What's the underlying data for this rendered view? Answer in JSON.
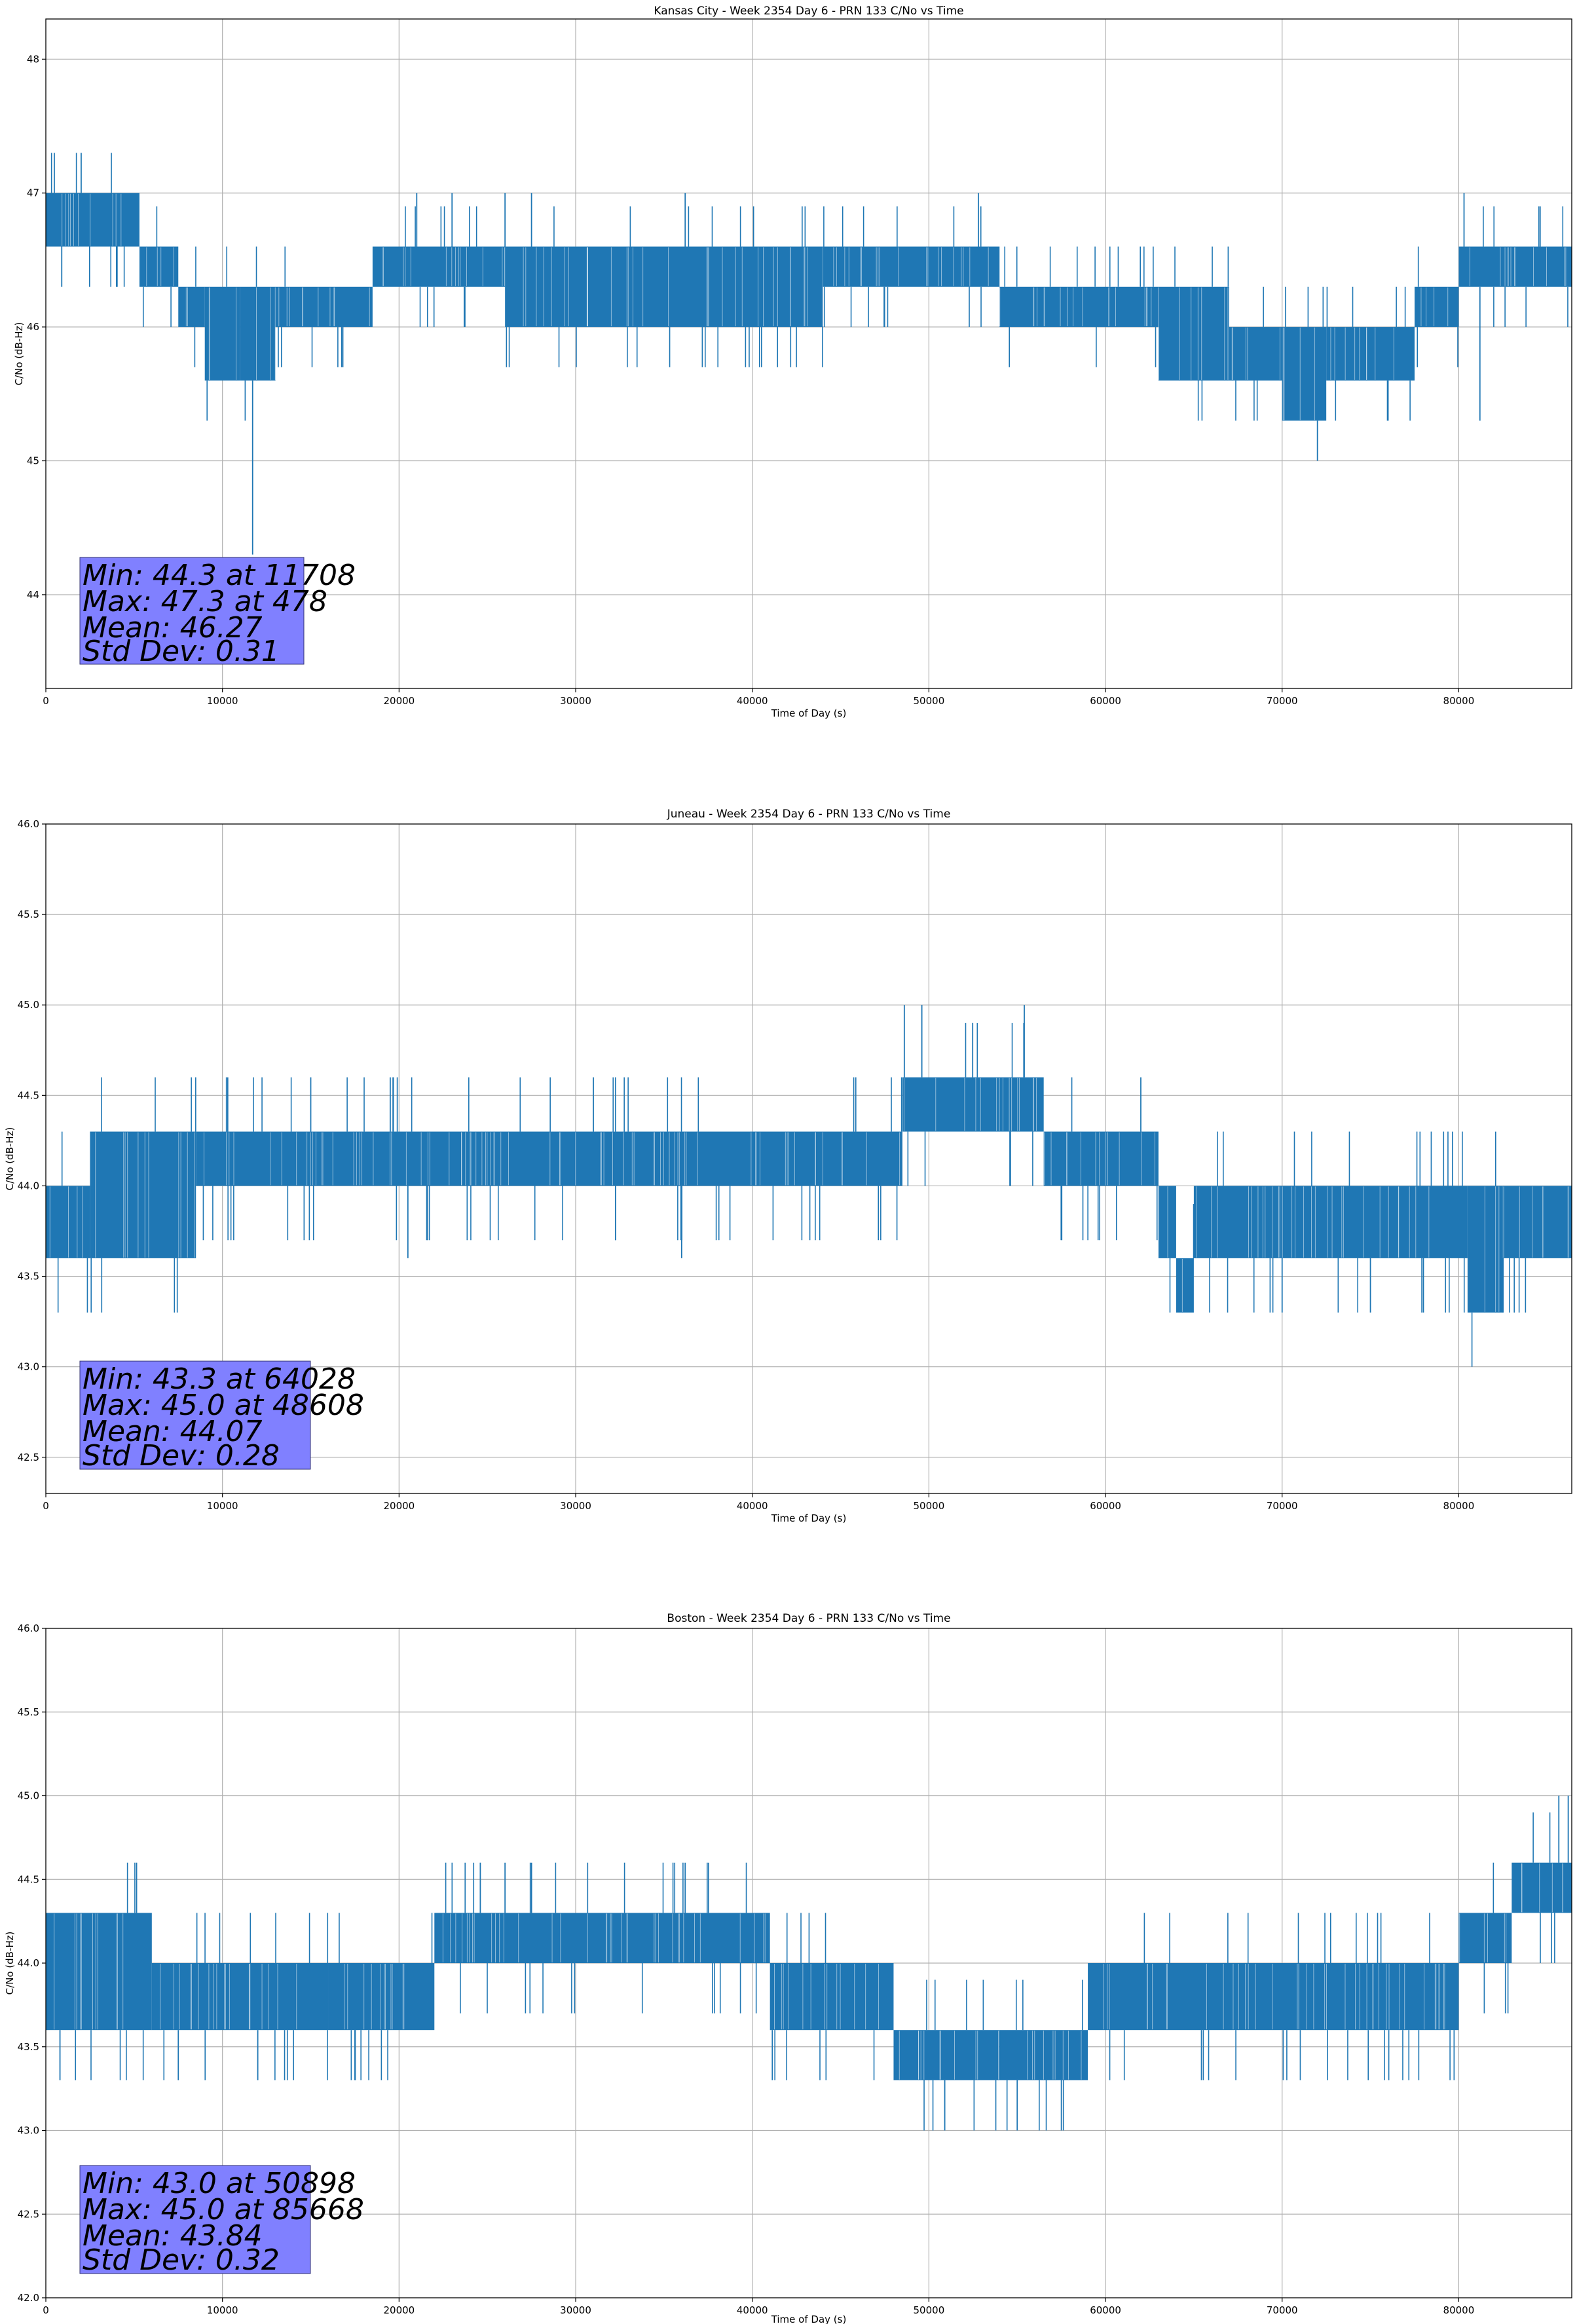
{
  "figure": {
    "line_color": "#1f77b4",
    "grid_color": "#b0b0b0",
    "stats_box_color": "#8080ff"
  },
  "chart_data": [
    {
      "type": "line",
      "title": "Kansas City - Week 2354 Day 6 - PRN 133 C/No vs Time",
      "xlabel": "Time of Day (s)",
      "ylabel": "C/No (dB-Hz)",
      "xlim": [
        0,
        86400
      ],
      "ylim": [
        43.3,
        48.3
      ],
      "xticks": [
        0,
        10000,
        20000,
        30000,
        40000,
        50000,
        60000,
        70000,
        80000
      ],
      "xtick_labels": [
        "0",
        "10000",
        "20000",
        "30000",
        "40000",
        "50000",
        "60000",
        "70000",
        "80000"
      ],
      "yticks": [
        44,
        45,
        46,
        47,
        48
      ],
      "ytick_labels": [
        "44",
        "45",
        "46",
        "47",
        "48"
      ],
      "grid": true,
      "series": [
        {
          "name": "C/No",
          "bands": [
            {
              "x": [
                0,
                5300
              ],
              "low": 46.6,
              "high": 47.0
            },
            {
              "x": [
                5300,
                7500
              ],
              "low": 46.3,
              "high": 46.6
            },
            {
              "x": [
                7500,
                9000
              ],
              "low": 46.0,
              "high": 46.3
            },
            {
              "x": [
                9000,
                11000
              ],
              "low": 45.6,
              "high": 46.3
            },
            {
              "x": [
                11000,
                13000
              ],
              "low": 45.6,
              "high": 46.3
            },
            {
              "x": [
                13000,
                18500
              ],
              "low": 46.0,
              "high": 46.3
            },
            {
              "x": [
                18500,
                26000
              ],
              "low": 46.3,
              "high": 46.6
            },
            {
              "x": [
                26000,
                44000
              ],
              "low": 46.0,
              "high": 46.6
            },
            {
              "x": [
                44000,
                54000
              ],
              "low": 46.3,
              "high": 46.6
            },
            {
              "x": [
                54000,
                63000
              ],
              "low": 46.0,
              "high": 46.3
            },
            {
              "x": [
                63000,
                67000
              ],
              "low": 45.6,
              "high": 46.3
            },
            {
              "x": [
                67000,
                70000
              ],
              "low": 45.6,
              "high": 46.0
            },
            {
              "x": [
                70000,
                72500
              ],
              "low": 45.3,
              "high": 46.0
            },
            {
              "x": [
                72500,
                77500
              ],
              "low": 45.6,
              "high": 46.0
            },
            {
              "x": [
                77500,
                80000
              ],
              "low": 46.0,
              "high": 46.3
            },
            {
              "x": [
                80000,
                86400
              ],
              "low": 46.3,
              "high": 46.6
            }
          ],
          "spikes": [
            {
              "x": 11708,
              "y": 44.3
            },
            {
              "x": 478,
              "y": 47.3
            },
            {
              "x": 2000,
              "y": 47.3
            },
            {
              "x": 21000,
              "y": 47.0
            },
            {
              "x": 23000,
              "y": 47.0
            },
            {
              "x": 26000,
              "y": 47.0
            },
            {
              "x": 27500,
              "y": 47.0
            },
            {
              "x": 36200,
              "y": 47.0
            },
            {
              "x": 52800,
              "y": 47.0
            },
            {
              "x": 80300,
              "y": 47.0
            },
            {
              "x": 72000,
              "y": 45.0
            },
            {
              "x": 76000,
              "y": 45.3
            },
            {
              "x": 81200,
              "y": 45.3
            },
            {
              "x": 4000,
              "y": 46.3
            },
            {
              "x": 900,
              "y": 46.3
            }
          ]
        }
      ],
      "stats": {
        "min": "Min: 44.3 at 11708",
        "max": "Max: 47.3 at 478",
        "mean": "Mean: 46.27",
        "std": "Std Dev: 0.31"
      }
    },
    {
      "type": "line",
      "title": "Juneau - Week 2354 Day 6 - PRN 133 C/No vs Time",
      "xlabel": "Time of Day (s)",
      "ylabel": "C/No (dB-Hz)",
      "xlim": [
        0,
        86400
      ],
      "ylim": [
        42.3,
        46.0
      ],
      "xticks": [
        0,
        10000,
        20000,
        30000,
        40000,
        50000,
        60000,
        70000,
        80000
      ],
      "xtick_labels": [
        "0",
        "10000",
        "20000",
        "30000",
        "40000",
        "50000",
        "60000",
        "70000",
        "80000"
      ],
      "yticks": [
        42.5,
        43.0,
        43.5,
        44.0,
        44.5,
        45.0,
        45.5,
        46.0
      ],
      "ytick_labels": [
        "42.5",
        "43.0",
        "43.5",
        "44.0",
        "44.5",
        "45.0",
        "45.5",
        "46.0"
      ],
      "grid": true,
      "series": [
        {
          "name": "C/No",
          "bands": [
            {
              "x": [
                0,
                2500
              ],
              "low": 43.6,
              "high": 44.0
            },
            {
              "x": [
                2500,
                8500
              ],
              "low": 43.6,
              "high": 44.3
            },
            {
              "x": [
                8500,
                48500
              ],
              "low": 44.0,
              "high": 44.3
            },
            {
              "x": [
                48500,
                56500
              ],
              "low": 44.3,
              "high": 44.6
            },
            {
              "x": [
                56500,
                63000
              ],
              "low": 44.0,
              "high": 44.3
            },
            {
              "x": [
                63000,
                64000
              ],
              "low": 43.6,
              "high": 44.0
            },
            {
              "x": [
                64000,
                65000
              ],
              "low": 43.3,
              "high": 43.6
            },
            {
              "x": [
                65000,
                80500
              ],
              "low": 43.6,
              "high": 44.0
            },
            {
              "x": [
                80500,
                82500
              ],
              "low": 43.3,
              "high": 44.0
            },
            {
              "x": [
                82500,
                86400
              ],
              "low": 43.6,
              "high": 44.0
            }
          ],
          "spikes": [
            {
              "x": 48608,
              "y": 45.0
            },
            {
              "x": 49600,
              "y": 45.0
            },
            {
              "x": 55400,
              "y": 45.0
            },
            {
              "x": 10300,
              "y": 44.6
            },
            {
              "x": 15000,
              "y": 44.6
            },
            {
              "x": 19500,
              "y": 44.6
            },
            {
              "x": 31000,
              "y": 44.6
            },
            {
              "x": 62000,
              "y": 44.6
            },
            {
              "x": 64028,
              "y": 43.3
            },
            {
              "x": 70000,
              "y": 43.3
            },
            {
              "x": 75000,
              "y": 43.3
            },
            {
              "x": 78000,
              "y": 43.3
            },
            {
              "x": 20500,
              "y": 43.6
            },
            {
              "x": 36000,
              "y": 43.6
            }
          ]
        }
      ],
      "stats": {
        "min": "Min: 43.3 at 64028",
        "max": "Max: 45.0 at 48608",
        "mean": "Mean: 44.07",
        "std": "Std Dev: 0.28"
      }
    },
    {
      "type": "line",
      "title": "Boston - Week 2354 Day 6 - PRN 133 C/No vs Time",
      "xlabel": "Time of Day (s)",
      "ylabel": "C/No (dB-Hz)",
      "xlim": [
        0,
        86400
      ],
      "ylim": [
        42.0,
        46.0
      ],
      "xticks": [
        0,
        10000,
        20000,
        30000,
        40000,
        50000,
        60000,
        70000,
        80000
      ],
      "xtick_labels": [
        "0",
        "10000",
        "20000",
        "30000",
        "40000",
        "50000",
        "60000",
        "70000",
        "80000"
      ],
      "yticks": [
        42.0,
        42.5,
        43.0,
        43.5,
        44.0,
        44.5,
        45.0,
        45.5,
        46.0
      ],
      "ytick_labels": [
        "42.0",
        "42.5",
        "43.0",
        "43.5",
        "44.0",
        "44.5",
        "45.0",
        "45.5",
        "46.0"
      ],
      "grid": true,
      "series": [
        {
          "name": "C/No",
          "bands": [
            {
              "x": [
                0,
                6000
              ],
              "low": 43.6,
              "high": 44.3
            },
            {
              "x": [
                6000,
                16000
              ],
              "low": 43.6,
              "high": 44.0
            },
            {
              "x": [
                16000,
                22000
              ],
              "low": 43.6,
              "high": 44.0
            },
            {
              "x": [
                22000,
                41000
              ],
              "low": 44.0,
              "high": 44.3
            },
            {
              "x": [
                41000,
                48000
              ],
              "low": 43.6,
              "high": 44.0
            },
            {
              "x": [
                48000,
                54000
              ],
              "low": 43.3,
              "high": 43.6
            },
            {
              "x": [
                54000,
                59000
              ],
              "low": 43.3,
              "high": 43.6
            },
            {
              "x": [
                59000,
                80000
              ],
              "low": 43.6,
              "high": 44.0
            },
            {
              "x": [
                80000,
                83000
              ],
              "low": 44.0,
              "high": 44.3
            },
            {
              "x": [
                83000,
                86400
              ],
              "low": 44.3,
              "high": 44.6
            }
          ],
          "spikes": [
            {
              "x": 50898,
              "y": 43.0
            },
            {
              "x": 55000,
              "y": 43.0
            },
            {
              "x": 57500,
              "y": 43.0
            },
            {
              "x": 85668,
              "y": 45.0
            },
            {
              "x": 86200,
              "y": 45.0
            },
            {
              "x": 24600,
              "y": 44.6
            },
            {
              "x": 26000,
              "y": 44.6
            },
            {
              "x": 27500,
              "y": 44.6
            },
            {
              "x": 36200,
              "y": 44.6
            },
            {
              "x": 800,
              "y": 43.3
            },
            {
              "x": 7500,
              "y": 43.3
            },
            {
              "x": 12000,
              "y": 43.3
            },
            {
              "x": 17500,
              "y": 43.3
            }
          ]
        }
      ],
      "stats": {
        "min": "Min: 43.0 at 50898",
        "max": "Max: 45.0 at 85668",
        "mean": "Mean: 43.84",
        "std": "Std Dev: 0.32"
      }
    }
  ]
}
